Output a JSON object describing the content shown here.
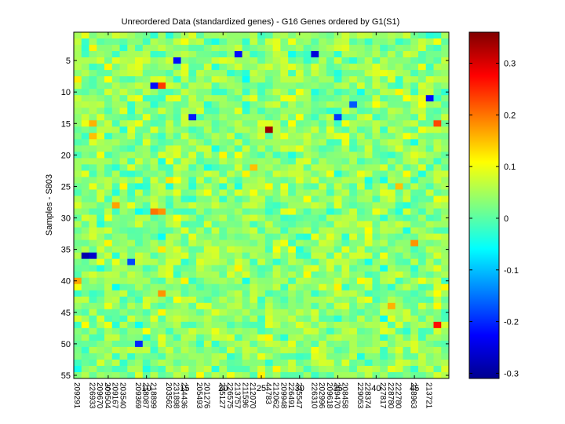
{
  "chart_data": {
    "type": "heatmap",
    "title": "Unreordered Data (standardized genes) - G16 Genes ordered by G1(S1)",
    "ylabel": "Samples - S803",
    "xlabel": "",
    "n_cols": 49,
    "n_rows": 55,
    "x_ticks": [
      5,
      10,
      15,
      20,
      25,
      30,
      35,
      40,
      45
    ],
    "y_ticks": [
      5,
      10,
      15,
      20,
      25,
      30,
      35,
      40,
      45,
      50,
      55
    ],
    "x_tick_labels": [
      "209291",
      "226933",
      "209670",
      "209504",
      "209167",
      "203540",
      "209369",
      "218087",
      "218899",
      "203562",
      "231898",
      "224436",
      "205493",
      "201276",
      "235127",
      "226575",
      "213757",
      "211596",
      "212070",
      "44783",
      "212062",
      "209948",
      "226491",
      "225547",
      "226310",
      "202996",
      "209618",
      "209470",
      "208458",
      "229053",
      "228374",
      "227817",
      "228780",
      "222780",
      "218963",
      "213721"
    ],
    "x_tick_label_positions": [
      1,
      3,
      4,
      5,
      6,
      7,
      9,
      10,
      11,
      13,
      14,
      15,
      17,
      18,
      20,
      21,
      22,
      23,
      24,
      26,
      27,
      28,
      29,
      30,
      32,
      33,
      34,
      35,
      36,
      38,
      39,
      41,
      42,
      43,
      45,
      47
    ],
    "colorbar": {
      "colormap": "jet",
      "range": [
        -0.31,
        0.36
      ],
      "ticks": [
        -0.3,
        -0.2,
        -0.1,
        0,
        0.1,
        0.2,
        0.3
      ],
      "tick_labels": [
        "-0.3",
        "-0.2",
        "-0.1",
        "0",
        "0.1",
        "0.2",
        "0.3"
      ]
    },
    "values_note": "Cell values are mostly within -0.12 to 0.15; extreme cells listed in highlights (approximate, read from colors).",
    "highlights": [
      {
        "row": 16,
        "col": 26,
        "value": 0.34
      },
      {
        "row": 36,
        "col": 2,
        "value": -0.28
      },
      {
        "row": 36,
        "col": 3,
        "value": -0.26
      },
      {
        "row": 47,
        "col": 48,
        "value": 0.27
      },
      {
        "row": 9,
        "col": 12,
        "value": 0.24
      },
      {
        "row": 15,
        "col": 48,
        "value": 0.23
      },
      {
        "row": 4,
        "col": 22,
        "value": -0.22
      },
      {
        "row": 4,
        "col": 32,
        "value": -0.25
      },
      {
        "row": 11,
        "col": 47,
        "value": -0.22
      },
      {
        "row": 5,
        "col": 14,
        "value": -0.22
      },
      {
        "row": 14,
        "col": 16,
        "value": -0.21
      },
      {
        "row": 9,
        "col": 11,
        "value": -0.22
      },
      {
        "row": 29,
        "col": 11,
        "value": 0.2
      },
      {
        "row": 29,
        "col": 12,
        "value": 0.18
      },
      {
        "row": 34,
        "col": 45,
        "value": 0.18
      },
      {
        "row": 42,
        "col": 12,
        "value": 0.18
      },
      {
        "row": 40,
        "col": 1,
        "value": 0.17
      },
      {
        "row": 15,
        "col": 3,
        "value": 0.16
      },
      {
        "row": 17,
        "col": 3,
        "value": 0.15
      },
      {
        "row": 50,
        "col": 9,
        "value": -0.2
      },
      {
        "row": 44,
        "col": 42,
        "value": 0.16
      },
      {
        "row": 37,
        "col": 8,
        "value": -0.18
      },
      {
        "row": 22,
        "col": 24,
        "value": 0.15
      },
      {
        "row": 28,
        "col": 6,
        "value": 0.17
      },
      {
        "row": 14,
        "col": 35,
        "value": -0.19
      },
      {
        "row": 12,
        "col": 37,
        "value": -0.17
      },
      {
        "row": 25,
        "col": 43,
        "value": 0.15
      }
    ]
  }
}
